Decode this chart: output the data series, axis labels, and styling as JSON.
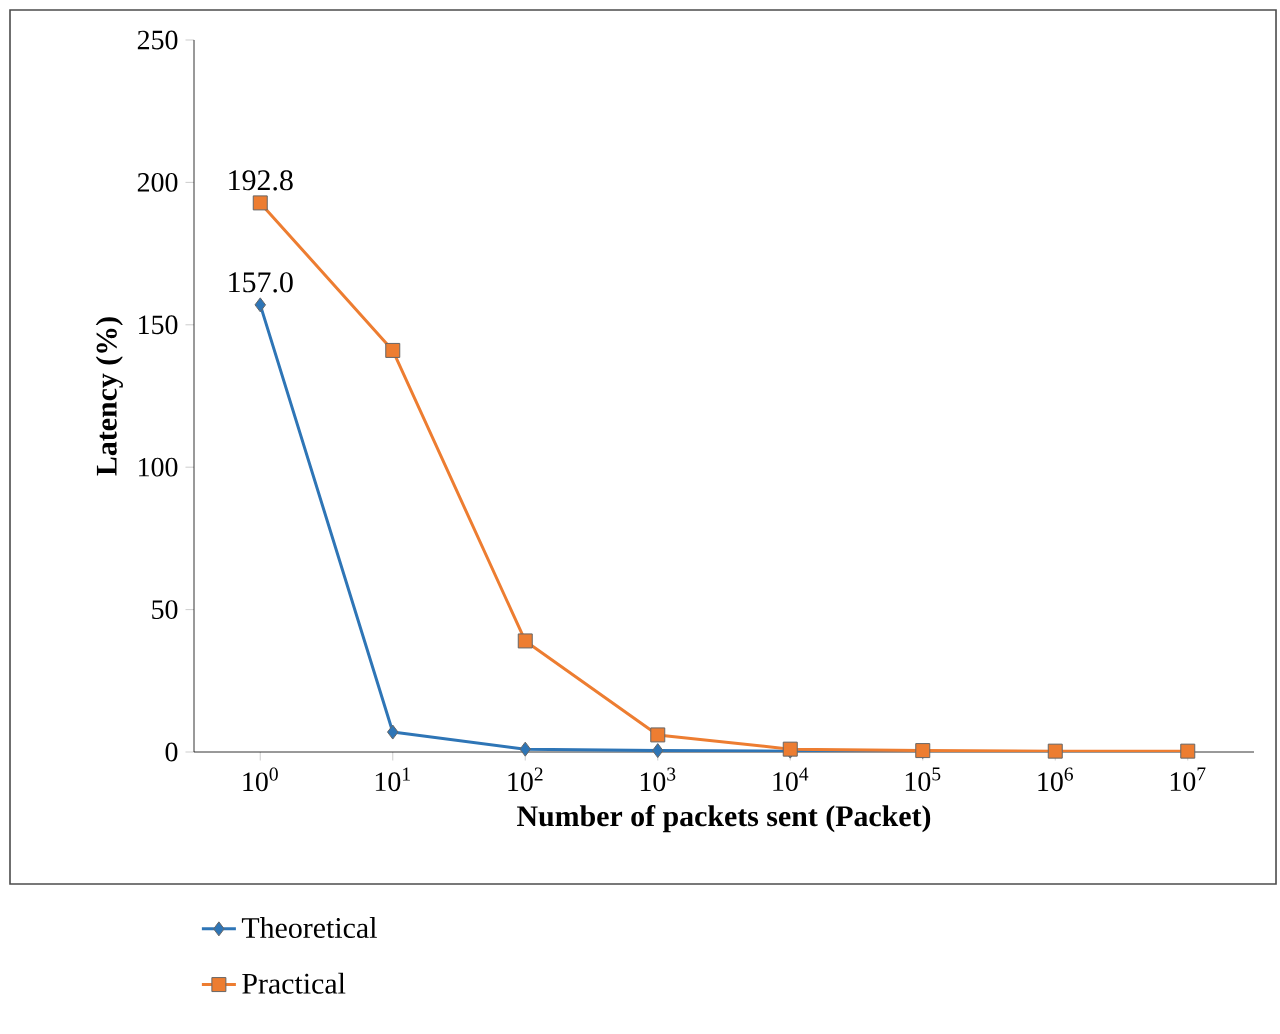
{
  "chart_data": {
    "type": "line",
    "xlabel": "Number of packets sent (Packet)",
    "ylabel": "Latency (%)",
    "categories": [
      "10$^{0}$",
      "10$^{1}$",
      "10$^{2}$",
      "10$^{3}$",
      "10$^{4}$",
      "10$^{5}$",
      "10$^{6}$",
      "10$^{7}$"
    ],
    "series": [
      {
        "name": "Theoretical",
        "color": "#2e75b6",
        "marker": "diamond",
        "values": [
          157.0,
          7,
          1,
          0.5,
          0.3,
          0.2,
          null,
          null
        ],
        "value_labels": [
          "157.0",
          null,
          null,
          null,
          null,
          null,
          null,
          null
        ]
      },
      {
        "name": "Practical",
        "color": "#ed7d31",
        "marker": "square",
        "values": [
          192.8,
          141,
          39,
          6,
          1,
          0.5,
          0.3,
          0.3
        ],
        "value_labels": [
          "192.8",
          null,
          null,
          null,
          null,
          null,
          null,
          null
        ]
      }
    ],
    "ylim": [
      0,
      250
    ],
    "yticks": [
      0,
      50,
      100,
      150,
      200,
      250
    ],
    "grid": false,
    "legend": "bottom",
    "line_style": "solid"
  }
}
